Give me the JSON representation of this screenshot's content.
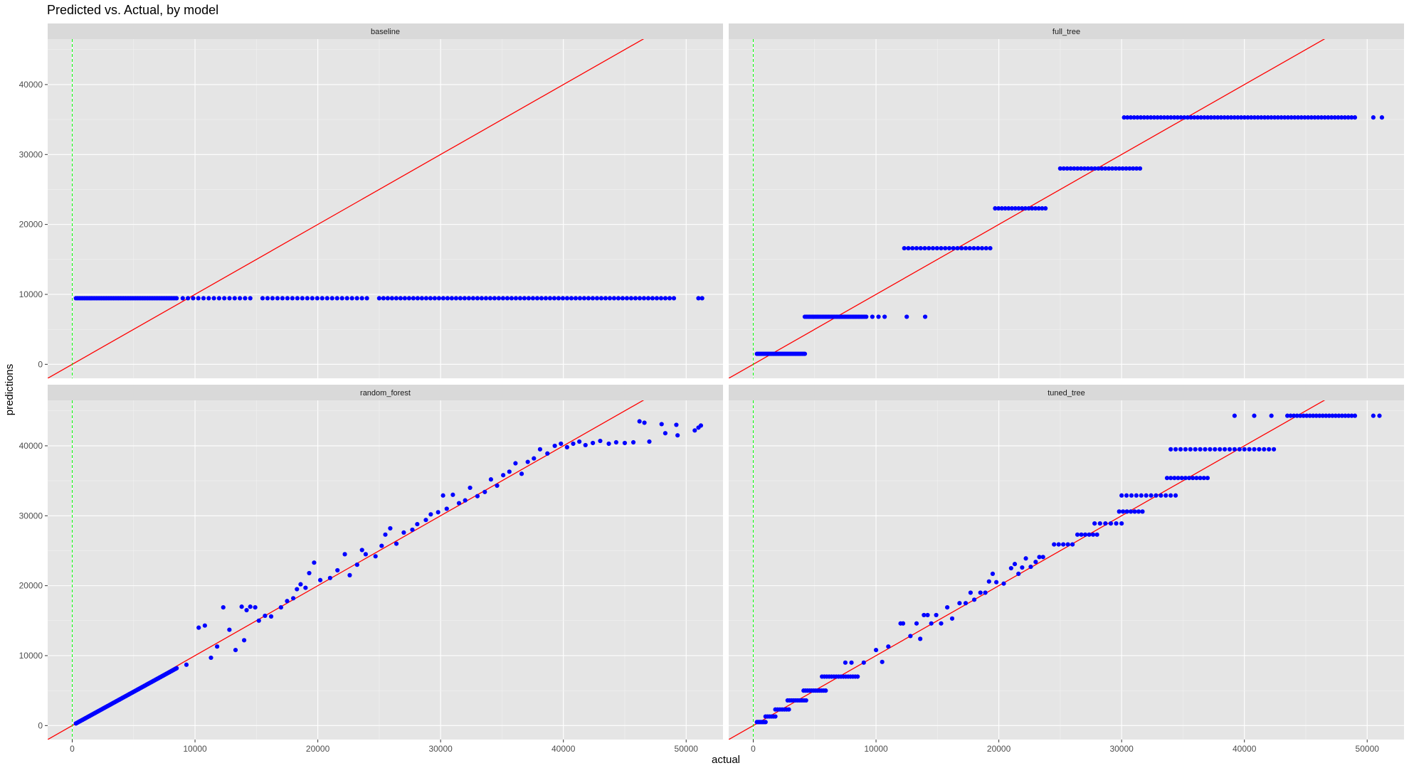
{
  "title": "Predicted vs. Actual, by model",
  "colors": {
    "points": "#0000ff",
    "identity_line": "#ff0000",
    "zero_vline": "#00ff00",
    "panel_background": "#e5e5e5",
    "strip_background": "#d9d9d9"
  },
  "chart_data": {
    "type": "scatter",
    "layout": "facet_wrap 2x2",
    "title": "Predicted vs. Actual, by model",
    "xlabel": "actual",
    "ylabel": "predictions",
    "xlim": [
      -2000,
      53000
    ],
    "ylim": [
      -2000,
      46500
    ],
    "x_ticks": [
      0,
      10000,
      20000,
      30000,
      40000,
      50000
    ],
    "y_ticks": [
      0,
      10000,
      20000,
      30000,
      40000
    ],
    "grid": true,
    "reference_lines": [
      {
        "kind": "abline",
        "slope": 1,
        "intercept": 0,
        "color": "#ff0000"
      },
      {
        "kind": "vline",
        "x": 0,
        "color": "#00ff00",
        "linetype": "dashed"
      }
    ],
    "facets": [
      {
        "name": "baseline",
        "segments": [
          {
            "x_from": 300,
            "x_to": 8500,
            "y": 9450,
            "n": 60
          },
          {
            "x_from": 9000,
            "x_to": 14500,
            "y": 9450,
            "n": 14
          },
          {
            "x_from": 15500,
            "x_to": 24000,
            "y": 9450,
            "n": 22
          },
          {
            "x_from": 25000,
            "x_to": 49000,
            "y": 9450,
            "n": 70
          }
        ],
        "points": [
          [
            51000,
            9450
          ],
          [
            51300,
            9450
          ]
        ]
      },
      {
        "name": "full_tree",
        "segments": [
          {
            "x_from": 300,
            "x_to": 4200,
            "y": 1500,
            "n": 40
          },
          {
            "x_from": 4200,
            "x_to": 9200,
            "y": 6800,
            "n": 40
          },
          {
            "x_from": 12300,
            "x_to": 19300,
            "y": 16600,
            "n": 22
          },
          {
            "x_from": 19700,
            "x_to": 23800,
            "y": 22300,
            "n": 16
          },
          {
            "x_from": 25000,
            "x_to": 31500,
            "y": 28000,
            "n": 24
          },
          {
            "x_from": 30200,
            "x_to": 49000,
            "y": 35300,
            "n": 70
          }
        ],
        "points": [
          [
            9700,
            6800
          ],
          [
            10200,
            6800
          ],
          [
            10700,
            6800
          ],
          [
            12500,
            6800
          ],
          [
            14000,
            6800
          ],
          [
            50500,
            35300
          ],
          [
            51200,
            35300
          ]
        ]
      },
      {
        "name": "random_forest",
        "segments": [
          {
            "x_from": 300,
            "x_to": 8500,
            "y_from": 300,
            "y_to": 8200,
            "n": 110
          }
        ],
        "points": [
          [
            9300,
            8700
          ],
          [
            10300,
            14000
          ],
          [
            10800,
            14300
          ],
          [
            11300,
            9700
          ],
          [
            11800,
            11300
          ],
          [
            12300,
            16900
          ],
          [
            12800,
            13700
          ],
          [
            13300,
            10800
          ],
          [
            13800,
            17000
          ],
          [
            14000,
            12200
          ],
          [
            14200,
            16500
          ],
          [
            14500,
            17000
          ],
          [
            14900,
            16900
          ],
          [
            15200,
            15000
          ],
          [
            15700,
            15700
          ],
          [
            16200,
            15600
          ],
          [
            17000,
            16900
          ],
          [
            17500,
            17800
          ],
          [
            18000,
            18200
          ],
          [
            18300,
            19500
          ],
          [
            18600,
            20200
          ],
          [
            19000,
            19700
          ],
          [
            19300,
            21800
          ],
          [
            19700,
            23300
          ],
          [
            20200,
            20800
          ],
          [
            21000,
            21100
          ],
          [
            21600,
            22200
          ],
          [
            22200,
            24500
          ],
          [
            22600,
            21500
          ],
          [
            23200,
            23000
          ],
          [
            23600,
            25100
          ],
          [
            23900,
            24500
          ],
          [
            24700,
            24200
          ],
          [
            25200,
            25700
          ],
          [
            25500,
            27300
          ],
          [
            25900,
            28200
          ],
          [
            26400,
            26000
          ],
          [
            27000,
            27600
          ],
          [
            27700,
            28000
          ],
          [
            28100,
            28800
          ],
          [
            28800,
            29400
          ],
          [
            29200,
            30200
          ],
          [
            29800,
            30500
          ],
          [
            30200,
            32900
          ],
          [
            30500,
            31000
          ],
          [
            31000,
            33000
          ],
          [
            31500,
            31800
          ],
          [
            32000,
            32200
          ],
          [
            32400,
            34000
          ],
          [
            33000,
            32800
          ],
          [
            33600,
            33400
          ],
          [
            34100,
            35200
          ],
          [
            34600,
            34300
          ],
          [
            35100,
            35800
          ],
          [
            35600,
            36300
          ],
          [
            36100,
            37500
          ],
          [
            36600,
            36000
          ],
          [
            37100,
            37700
          ],
          [
            37600,
            38200
          ],
          [
            38100,
            39500
          ],
          [
            38700,
            38900
          ],
          [
            39300,
            40000
          ],
          [
            39800,
            40300
          ],
          [
            40300,
            39800
          ],
          [
            40800,
            40300
          ],
          [
            41300,
            40600
          ],
          [
            41800,
            40100
          ],
          [
            42400,
            40400
          ],
          [
            43000,
            40700
          ],
          [
            43700,
            40300
          ],
          [
            44300,
            40500
          ],
          [
            45000,
            40400
          ],
          [
            45700,
            40500
          ],
          [
            46200,
            43500
          ],
          [
            46600,
            43300
          ],
          [
            47000,
            40600
          ],
          [
            48000,
            43100
          ],
          [
            48300,
            41800
          ],
          [
            49200,
            43000
          ],
          [
            49300,
            41500
          ],
          [
            50700,
            42200
          ],
          [
            51000,
            42600
          ],
          [
            51200,
            42900
          ]
        ]
      },
      {
        "name": "tuned_tree",
        "segments": [
          {
            "x_from": 300,
            "x_to": 1000,
            "y": 500,
            "n": 7
          },
          {
            "x_from": 1000,
            "x_to": 1800,
            "y": 1300,
            "n": 6
          },
          {
            "x_from": 1800,
            "x_to": 2900,
            "y": 2300,
            "n": 7
          },
          {
            "x_from": 2800,
            "x_to": 4300,
            "y": 3600,
            "n": 10
          },
          {
            "x_from": 4100,
            "x_to": 5900,
            "y": 5000,
            "n": 12
          },
          {
            "x_from": 5600,
            "x_to": 8500,
            "y": 7000,
            "n": 16
          },
          {
            "x_from": 24500,
            "x_to": 26000,
            "y": 25900,
            "n": 5
          },
          {
            "x_from": 26400,
            "x_to": 28000,
            "y": 27300,
            "n": 6
          },
          {
            "x_from": 27800,
            "x_to": 30000,
            "y": 28900,
            "n": 6
          },
          {
            "x_from": 29800,
            "x_to": 31700,
            "y": 30600,
            "n": 7
          },
          {
            "x_from": 30000,
            "x_to": 34400,
            "y": 32900,
            "n": 12
          },
          {
            "x_from": 33700,
            "x_to": 37000,
            "y": 35400,
            "n": 12
          },
          {
            "x_from": 34000,
            "x_to": 42400,
            "y": 39500,
            "n": 22
          },
          {
            "x_from": 43500,
            "x_to": 49000,
            "y": 44300,
            "n": 22
          }
        ],
        "points": [
          [
            7500,
            9000
          ],
          [
            8000,
            9000
          ],
          [
            9000,
            9000
          ],
          [
            10000,
            10800
          ],
          [
            10500,
            9100
          ],
          [
            11000,
            11300
          ],
          [
            12000,
            14600
          ],
          [
            12200,
            14600
          ],
          [
            12800,
            12800
          ],
          [
            13300,
            14600
          ],
          [
            13600,
            12400
          ],
          [
            13900,
            15800
          ],
          [
            14200,
            15800
          ],
          [
            14500,
            14600
          ],
          [
            14900,
            15800
          ],
          [
            15300,
            14600
          ],
          [
            15800,
            16900
          ],
          [
            16200,
            15300
          ],
          [
            16800,
            17500
          ],
          [
            17300,
            17500
          ],
          [
            17700,
            19000
          ],
          [
            18000,
            18000
          ],
          [
            18500,
            19000
          ],
          [
            18900,
            19000
          ],
          [
            19200,
            20600
          ],
          [
            19500,
            21700
          ],
          [
            19800,
            20500
          ],
          [
            20400,
            20300
          ],
          [
            21000,
            22500
          ],
          [
            21300,
            23100
          ],
          [
            21600,
            21700
          ],
          [
            21900,
            22600
          ],
          [
            22200,
            23900
          ],
          [
            22600,
            22700
          ],
          [
            23000,
            23400
          ],
          [
            23300,
            24100
          ],
          [
            23600,
            24100
          ],
          [
            39200,
            44300
          ],
          [
            40800,
            44300
          ],
          [
            42200,
            44300
          ],
          [
            50500,
            44300
          ],
          [
            51000,
            44300
          ]
        ]
      }
    ]
  }
}
